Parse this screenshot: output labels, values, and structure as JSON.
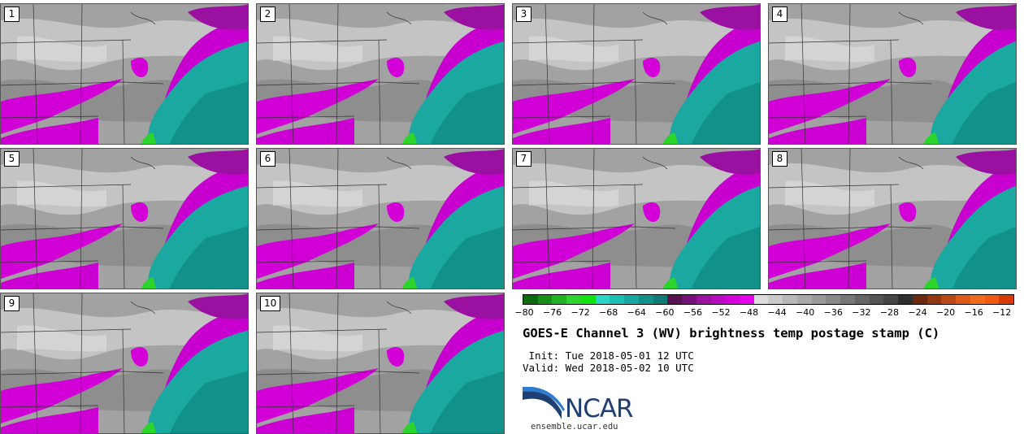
{
  "panels": [
    {
      "label": "1"
    },
    {
      "label": "2"
    },
    {
      "label": "3"
    },
    {
      "label": "4"
    },
    {
      "label": "5"
    },
    {
      "label": "6"
    },
    {
      "label": "7"
    },
    {
      "label": "8"
    },
    {
      "label": "9"
    },
    {
      "label": "10"
    }
  ],
  "colorbar": {
    "ticks": [
      "−80",
      "−76",
      "−72",
      "−68",
      "−64",
      "−60",
      "−56",
      "−52",
      "−48",
      "−44",
      "−40",
      "−36",
      "−32",
      "−28",
      "−24",
      "−20",
      "−16",
      "−12"
    ],
    "colors": [
      "#0b6a0b",
      "#178f17",
      "#21b221",
      "#2cd42c",
      "#0fe30f",
      "#27d6c6",
      "#1cc0b4",
      "#16a8a0",
      "#12908a",
      "#0f7a76",
      "#57124f",
      "#78107a",
      "#9a10a0",
      "#b80ac0",
      "#d300d8",
      "#e600ee",
      "#dcdcdc",
      "#cacaca",
      "#b8b8b8",
      "#a8a8a8",
      "#989898",
      "#888888",
      "#777777",
      "#666666",
      "#555555",
      "#444444",
      "#2e2e2e",
      "#6b2a10",
      "#913812",
      "#b84816",
      "#de5a18",
      "#f26a1c",
      "#ef5a10",
      "#d83a08"
    ]
  },
  "title": "GOES-E Channel 3 (WV) brightness temp postage stamp (C)",
  "init": " Init: Tue 2018-05-01 12 UTC",
  "valid": "Valid: Wed 2018-05-02 10 UTC",
  "logo": {
    "name": "NCAR",
    "url": "ensemble.ucar.edu"
  }
}
